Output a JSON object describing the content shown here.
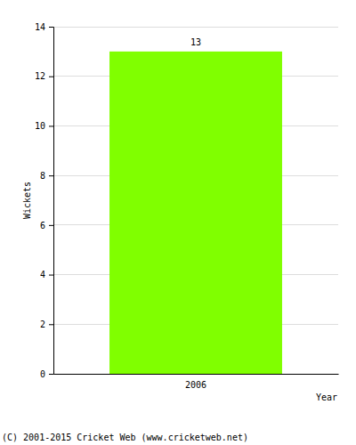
{
  "chart_data": {
    "type": "bar",
    "x_label": "Year",
    "y_label": "Wickets",
    "categories": [
      "2006"
    ],
    "values": [
      13
    ],
    "color": "#80ff00",
    "ylim": [
      0,
      14
    ],
    "yticks": [
      0,
      2,
      4,
      6,
      8,
      10,
      12,
      14
    ],
    "grid": true,
    "data_labels": true,
    "annotations": [
      "(C) 2001-2015 Cricket Web (www.cricketweb.net)"
    ]
  }
}
